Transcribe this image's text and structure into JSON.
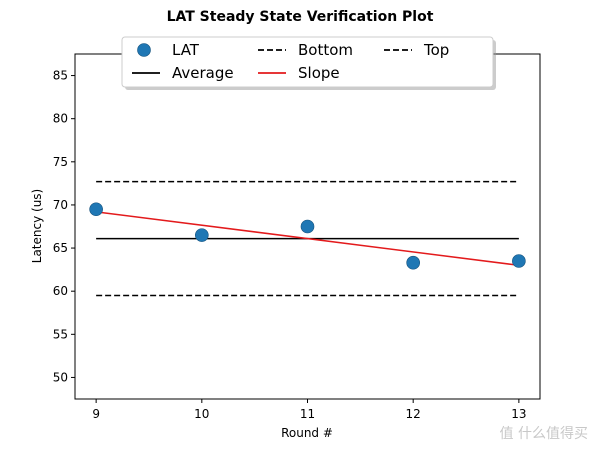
{
  "chart_data": {
    "type": "scatter",
    "title": "LAT Steady State Verification Plot",
    "xlabel": "Round #",
    "ylabel": "Latency (us)",
    "xlim": [
      8.8,
      13.2
    ],
    "ylim": [
      47.5,
      87.5
    ],
    "xticks": [
      9,
      10,
      11,
      12,
      13
    ],
    "yticks": [
      50,
      55,
      60,
      65,
      70,
      75,
      80,
      85
    ],
    "grid": false,
    "legend_position": "top-center",
    "series": [
      {
        "name": "LAT",
        "kind": "scatter",
        "color": "#1f77b4",
        "x": [
          9,
          10,
          11,
          12,
          13
        ],
        "y": [
          69.5,
          66.5,
          67.5,
          63.3,
          63.5
        ]
      },
      {
        "name": "Slope",
        "kind": "line",
        "color": "#e31a1c",
        "x": [
          9,
          13
        ],
        "y": [
          69.2,
          63.0
        ]
      },
      {
        "name": "Average",
        "kind": "line",
        "color": "#000000",
        "dash": "solid",
        "x": [
          9,
          13
        ],
        "y": [
          66.1,
          66.1
        ]
      },
      {
        "name": "Top",
        "kind": "line",
        "color": "#000000",
        "dash": "dashed",
        "x": [
          9,
          13
        ],
        "y": [
          72.7,
          72.7
        ]
      },
      {
        "name": "Bottom",
        "kind": "line",
        "color": "#000000",
        "dash": "dashed",
        "x": [
          9,
          13
        ],
        "y": [
          59.5,
          59.5
        ]
      }
    ],
    "legend_order": [
      "LAT",
      "Average",
      "Bottom",
      "Slope",
      "Top"
    ]
  },
  "watermark": "值 什么值得买"
}
